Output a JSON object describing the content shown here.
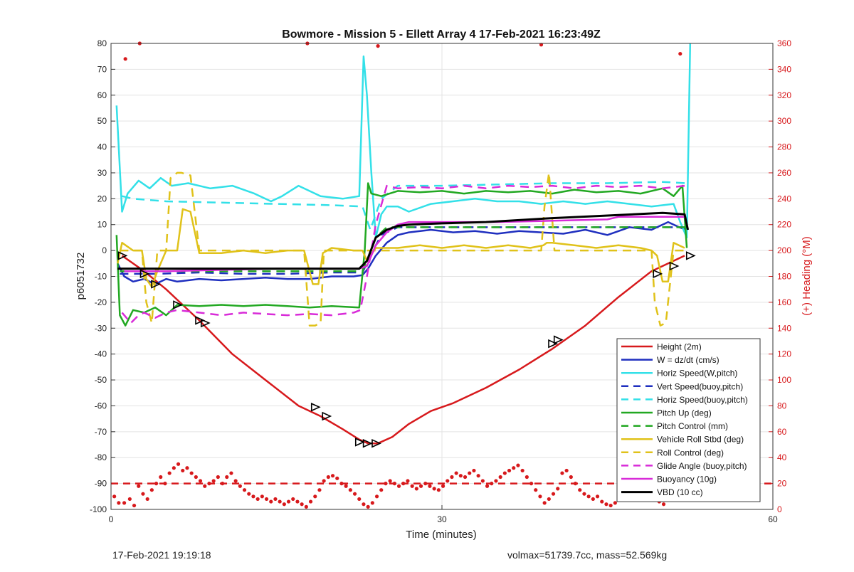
{
  "footer": {
    "timestamp": "17-Feb-2021 19:19:18",
    "summary": "volmax=51739.7cc, mass=52.569kg"
  },
  "chart_data": {
    "type": "line",
    "title": "Bowmore - Mission 5 - Ellett Array 4 17-Feb-2021 16:23:49Z",
    "xlabel": "Time (minutes)",
    "ylabel": "p6051732",
    "y2label": "(+) Heading (°M)",
    "xlim": [
      0,
      60
    ],
    "ylim": [
      -100,
      80
    ],
    "y2lim": [
      0,
      360
    ],
    "xticks": [
      0,
      30,
      60
    ],
    "yticks": [
      -100,
      -90,
      -80,
      -70,
      -60,
      -50,
      -40,
      -30,
      -20,
      -10,
      0,
      10,
      20,
      30,
      40,
      50,
      60,
      70,
      80
    ],
    "y2ticks": [
      0,
      20,
      40,
      60,
      80,
      100,
      120,
      140,
      160,
      180,
      200,
      220,
      240,
      260,
      280,
      300,
      320,
      340,
      360
    ],
    "grid": true,
    "legend_position": "bottom-right",
    "colors": {
      "height": "#d7191c",
      "w": "#1f2fbf",
      "horiz": "#33e0e8",
      "pitch": "#22a822",
      "roll": "#e0c21a",
      "glide": "#d82bd8",
      "buoyancy": "#d82bd8",
      "vbd": "#000000",
      "heading": "#d7191c"
    },
    "series": [
      {
        "name": "Height (2m)",
        "key": "height",
        "style": "solid",
        "width": 2.5,
        "color": "#d7191c",
        "x": [
          1,
          3,
          5,
          8,
          11,
          14,
          17,
          19,
          21,
          22.5,
          23.3,
          24.2,
          25.5,
          27,
          29,
          31,
          34,
          37,
          40,
          43,
          46,
          49,
          52
        ],
        "y": [
          -2,
          -8,
          -15,
          -27,
          -40,
          -50,
          -60,
          -64,
          -69,
          -73,
          -74.5,
          -74.5,
          -72,
          -67,
          -62,
          -59,
          -53,
          -46,
          -38,
          -29,
          -18,
          -8,
          -2
        ]
      },
      {
        "name": "W = dz/dt (cm/s)",
        "key": "w",
        "style": "solid",
        "width": 2.5,
        "color": "#1f2fbf",
        "x": [
          0.6,
          1.2,
          2,
          3,
          4,
          5,
          6,
          8,
          10,
          12,
          14,
          16,
          18,
          20,
          22,
          22.8,
          23.3,
          24,
          25,
          26,
          27,
          29,
          31,
          33,
          35,
          37,
          39,
          41,
          43,
          45,
          47,
          49,
          50.5,
          51.5,
          52.2
        ],
        "y": [
          -5,
          -10,
          -12,
          -11,
          -13,
          -11,
          -12,
          -11,
          -11.5,
          -11,
          -10.5,
          -11,
          -11,
          -10,
          -10,
          -9.5,
          -7,
          -2,
          3,
          6,
          7,
          8,
          7,
          7.5,
          6.5,
          7.5,
          7,
          6.5,
          8,
          6,
          9,
          8,
          11,
          9,
          8
        ]
      },
      {
        "name": "Horiz Speed(W,pitch)",
        "key": "horiz",
        "style": "solid",
        "width": 2.5,
        "color": "#33e0e8",
        "x": [
          0.5,
          1,
          1.5,
          2.5,
          3.5,
          4.5,
          5.5,
          7,
          9,
          11,
          13,
          14.5,
          15.5,
          17,
          19,
          21,
          22.5,
          22.9,
          23.2,
          23.6,
          24,
          24.5,
          25,
          26,
          27,
          29,
          31,
          33,
          35,
          37,
          39,
          41,
          43,
          45,
          47,
          49,
          51,
          51.6,
          52.2,
          52.5
        ],
        "y": [
          56,
          15,
          22,
          27,
          24,
          28,
          25,
          26,
          24,
          25,
          22,
          19,
          21,
          25,
          21,
          20,
          21,
          75,
          60,
          30,
          5,
          14,
          17,
          17,
          15,
          18,
          19,
          20,
          19,
          19,
          18,
          19,
          18,
          19,
          18,
          17,
          18,
          11,
          5,
          80
        ]
      },
      {
        "name": "Vert Speed(buoy,pitch)",
        "key": "vert",
        "style": "dashed",
        "width": 2.5,
        "color": "#1f2fbf",
        "x": [
          0.8,
          2,
          4,
          8,
          12,
          16,
          20,
          22.8,
          23.5,
          24.5,
          26,
          30,
          35,
          40,
          45,
          50,
          52.2
        ],
        "y": [
          -9,
          -9,
          -9,
          -8.5,
          -9,
          -9,
          -8.5,
          -8.5,
          -2,
          6,
          9,
          9,
          9,
          9,
          9,
          9,
          9
        ]
      },
      {
        "name": "Horiz Speed(buoy,pitch)",
        "key": "horiz2",
        "style": "dashed",
        "width": 2.5,
        "color": "#33e0e8",
        "x": [
          1,
          2,
          5,
          10,
          15,
          20,
          22.8,
          23.5,
          24.5,
          26,
          30,
          35,
          40,
          45,
          50,
          52.2
        ],
        "y": [
          21,
          20,
          19,
          18.5,
          18,
          17.5,
          17,
          8,
          20,
          25,
          25,
          25.5,
          26,
          26,
          26.5,
          26
        ]
      },
      {
        "name": "Pitch Up (deg)",
        "key": "pitch",
        "style": "solid",
        "width": 2.5,
        "color": "#22a822",
        "x": [
          0.5,
          0.8,
          1.3,
          2,
          3,
          4,
          5,
          6,
          8,
          10,
          12,
          14,
          16,
          18,
          20,
          22.5,
          23,
          23.3,
          23.6,
          24.5,
          26,
          28,
          30,
          32,
          34,
          36,
          38,
          40,
          42,
          44,
          46,
          48,
          50,
          51,
          51.8,
          52.2
        ],
        "y": [
          6,
          -25,
          -29,
          -23,
          -24,
          -22,
          -25,
          -21,
          -21.5,
          -21,
          -21.5,
          -21,
          -21.5,
          -22,
          -21.5,
          -22,
          0,
          26,
          22,
          21,
          23,
          22.5,
          23,
          22,
          23,
          22.5,
          23,
          22,
          23.5,
          22.5,
          23,
          22,
          24,
          21,
          25,
          1
        ]
      },
      {
        "name": "Pitch Control (mm)",
        "key": "pitchctl",
        "style": "dashed",
        "width": 2.5,
        "color": "#22a822",
        "x": [
          0.8,
          2,
          5,
          10,
          15,
          20,
          22.8,
          23.3,
          24,
          25,
          30,
          40,
          45,
          50,
          52.2
        ],
        "y": [
          -8,
          -8,
          -8,
          -8,
          -8,
          -8,
          -8,
          -3,
          5,
          9,
          9,
          9,
          9,
          9,
          9
        ]
      },
      {
        "name": "Vehicle Roll Stbd (deg)",
        "key": "roll",
        "style": "solid",
        "width": 2.5,
        "color": "#e0c21a",
        "x": [
          0.6,
          1,
          2,
          2.8,
          3.2,
          3.7,
          4.2,
          5,
          5.4,
          6,
          6.5,
          7.2,
          8,
          10,
          12,
          14,
          16,
          17.5,
          18.3,
          18.8,
          19.2,
          20,
          22,
          22.8,
          23.2,
          24,
          26,
          28,
          30,
          32,
          34,
          36,
          38,
          39.2,
          39.5,
          40,
          42,
          44,
          46,
          48,
          49,
          49.5,
          50,
          50.5,
          51,
          52
        ],
        "y": [
          -5,
          3,
          0,
          0,
          -11,
          -14,
          -8,
          0,
          0,
          0,
          16,
          15,
          -1,
          -1,
          0,
          -1,
          0,
          0,
          -13,
          -13,
          -1,
          1,
          0,
          0,
          -4,
          1,
          1,
          2,
          1,
          2,
          1,
          2,
          1,
          2,
          3,
          3,
          2,
          1,
          2,
          1,
          0,
          -2,
          -12,
          -12,
          3,
          1
        ]
      },
      {
        "name": "Roll Control (deg)",
        "key": "rollctl",
        "style": "dashed",
        "width": 2.5,
        "color": "#e0c21a",
        "x": [
          0.8,
          2.8,
          3.2,
          3.7,
          4.2,
          5,
          5.4,
          6,
          6.4,
          7.2,
          8,
          17.5,
          18,
          18.5,
          19,
          19.3,
          20,
          22.8,
          23.5,
          24,
          39,
          39.3,
          39.7,
          40.2,
          49,
          49.3,
          49.8,
          50.3,
          51,
          52
        ],
        "y": [
          0,
          0,
          -20,
          -28,
          0,
          0,
          28,
          30,
          30,
          29,
          0,
          0,
          -29,
          -29,
          -28,
          0,
          0,
          0,
          0,
          0,
          0,
          17,
          30,
          0,
          0,
          -20,
          -29,
          -28,
          0,
          0
        ]
      },
      {
        "name": "Glide Angle (buoy,pitch)",
        "key": "glide",
        "style": "dashed",
        "width": 2.5,
        "color": "#d82bd8",
        "x": [
          1,
          1.8,
          2.5,
          3,
          4,
          5,
          6,
          8,
          10,
          12,
          14,
          16,
          18,
          20,
          22,
          22.6,
          23.2,
          24,
          25,
          26,
          28,
          30,
          32,
          34,
          36,
          38,
          40,
          42,
          44,
          46,
          48,
          50,
          52
        ],
        "y": [
          -24,
          -28,
          -25,
          -24,
          -26,
          -24,
          -23,
          -24,
          -25,
          -24,
          -24.5,
          -25,
          -24.5,
          -25,
          -24,
          -23,
          -10,
          10,
          25,
          24,
          24.5,
          24,
          25,
          24,
          25,
          24.5,
          25,
          24,
          25,
          24.5,
          25,
          24,
          25
        ]
      },
      {
        "name": "Buoyancy (10g)",
        "key": "buoyancy",
        "style": "solid",
        "width": 2.5,
        "color": "#d82bd8",
        "x": [
          1.2,
          5,
          10,
          15,
          20,
          22.5,
          23.2,
          24,
          25,
          26,
          27,
          30,
          35,
          40,
          45,
          46,
          52
        ],
        "y": [
          -8,
          -8,
          -7.5,
          -7,
          -7,
          -7,
          -6,
          2,
          7,
          10,
          11,
          11,
          11,
          11.5,
          12,
          13,
          13
        ]
      },
      {
        "name": "VBD (10 cc)",
        "key": "vbd",
        "style": "solid",
        "width": 3,
        "color": "#000000",
        "x": [
          0.6,
          5,
          10,
          15,
          20,
          22.5,
          23.2,
          24,
          25,
          26,
          27,
          30,
          34,
          40,
          45,
          50,
          52,
          52.3
        ],
        "y": [
          -7,
          -7,
          -7,
          -7,
          -7,
          -7,
          -4,
          5,
          8,
          9.5,
          10,
          10.5,
          11,
          12.5,
          13.5,
          14.5,
          14,
          8
        ]
      }
    ],
    "heading_dashed_level": 20,
    "heading_points": {
      "name": "Heading",
      "axis": "y2",
      "x": [
        0.3,
        0.7,
        1.2,
        1.7,
        2.1,
        2.5,
        2.9,
        3.3,
        3.7,
        4.1,
        4.5,
        4.9,
        5.3,
        5.7,
        6.1,
        6.5,
        6.9,
        7.3,
        7.7,
        8.1,
        8.5,
        8.9,
        9.3,
        9.7,
        10.1,
        10.5,
        10.9,
        11.3,
        11.7,
        12.1,
        12.5,
        12.9,
        13.3,
        13.7,
        14.1,
        14.5,
        14.9,
        15.3,
        15.7,
        16.1,
        16.5,
        16.9,
        17.3,
        17.7,
        18.1,
        18.5,
        18.9,
        19.3,
        19.7,
        20.1,
        20.5,
        20.9,
        21.3,
        21.7,
        22.1,
        22.5,
        22.9,
        23.3,
        23.7,
        24.1,
        24.5,
        24.9,
        25.3,
        25.7,
        26.1,
        26.5,
        26.9,
        27.3,
        27.7,
        28.1,
        28.5,
        28.9,
        29.3,
        29.7,
        30.1,
        30.5,
        30.9,
        31.3,
        31.7,
        32.1,
        32.5,
        32.9,
        33.3,
        33.7,
        34.1,
        34.5,
        34.9,
        35.3,
        35.7,
        36.1,
        36.5,
        36.9,
        37.3,
        37.7,
        38.1,
        38.5,
        38.9,
        39.3,
        39.7,
        40.1,
        40.5,
        40.9,
        41.3,
        41.7,
        42.1,
        42.5,
        42.9,
        43.3,
        43.7,
        44.1,
        44.5,
        44.9,
        45.3,
        45.7,
        46.1,
        46.5,
        46.9,
        47.3,
        47.7,
        48.1,
        48.5,
        48.9,
        49.3,
        49.7,
        50.1,
        50.5,
        50.9,
        51.3,
        51.7,
        52.1
      ],
      "y": [
        10,
        5,
        5,
        8,
        3,
        18,
        12,
        8,
        15,
        20,
        25,
        20,
        28,
        32,
        35,
        30,
        32,
        28,
        25,
        22,
        18,
        20,
        22,
        25,
        20,
        25,
        28,
        22,
        18,
        15,
        12,
        10,
        8,
        10,
        8,
        6,
        8,
        6,
        4,
        6,
        8,
        6,
        4,
        2,
        6,
        10,
        15,
        22,
        25,
        26,
        24,
        20,
        18,
        15,
        12,
        8,
        4,
        2,
        5,
        10,
        15,
        20,
        22,
        20,
        18,
        20,
        22,
        18,
        16,
        18,
        20,
        18,
        16,
        15,
        18,
        22,
        25,
        28,
        26,
        25,
        28,
        30,
        26,
        22,
        18,
        20,
        22,
        25,
        28,
        30,
        32,
        34,
        30,
        25,
        20,
        15,
        10,
        5,
        8,
        12,
        16,
        28,
        30,
        25,
        20,
        15,
        12,
        10,
        8,
        10,
        6,
        4,
        3,
        5,
        8,
        10,
        12,
        15,
        18,
        15,
        12,
        10,
        8,
        6,
        4,
        8,
        10,
        15,
        20,
        22
      ],
      "outliers_x": [
        1.3,
        2.6,
        17.8,
        24.2,
        39,
        51.6
      ],
      "outliers_y": [
        348,
        360,
        360,
        358,
        359,
        352
      ]
    },
    "markers": {
      "x": [
        1,
        3,
        4,
        6,
        8,
        8.5,
        18.5,
        19.5,
        22.5,
        23.2,
        24,
        40,
        40.5,
        49.5,
        51,
        52.5
      ],
      "y": [
        -2,
        -9,
        -13,
        -21,
        -27,
        -28,
        -60.5,
        -64,
        -74,
        -74.5,
        -74.5,
        -36,
        -34.5,
        -9,
        -6,
        -2
      ]
    }
  }
}
